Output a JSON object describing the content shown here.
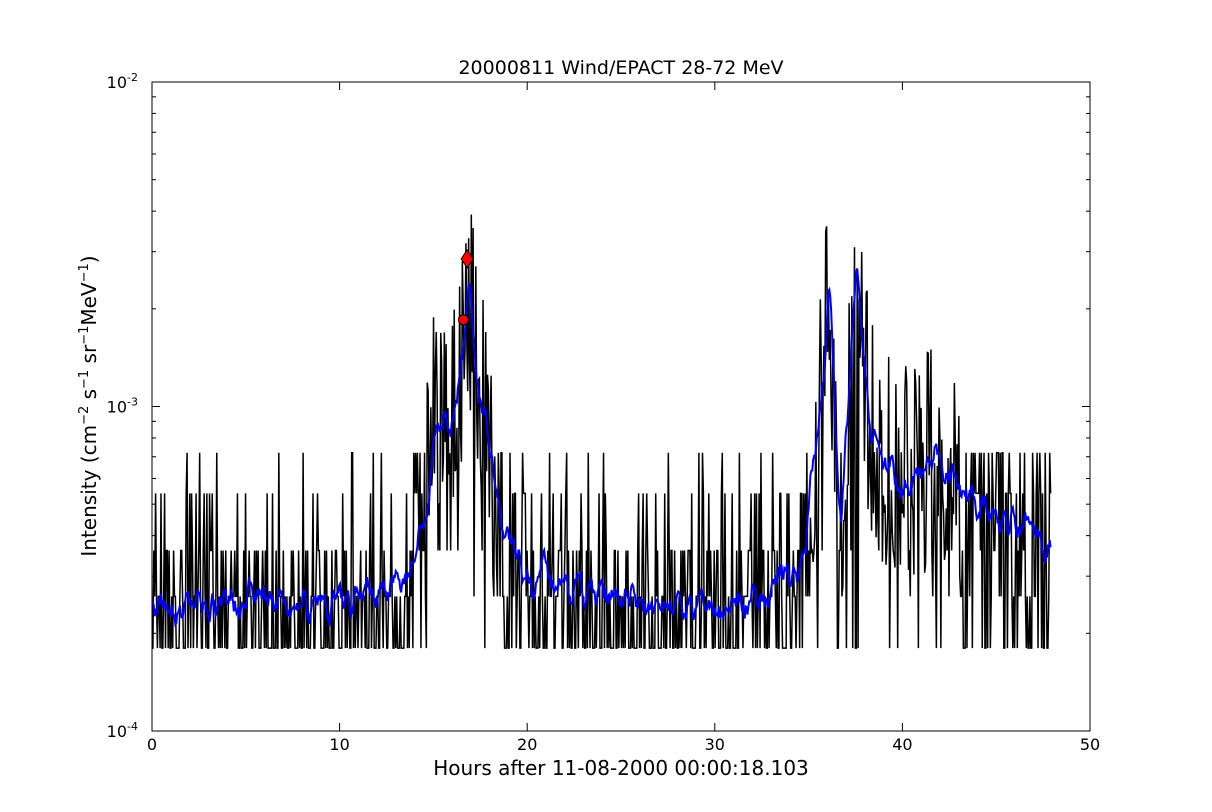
{
  "chart_data": {
    "type": "line",
    "title": "20000811 Wind/EPACT 28-72 MeV",
    "xlabel": "Hours after 11-08-2000 00:00:18.103",
    "ylabel_parts": {
      "lead": "Intensity (cm",
      "exp1": "−2",
      "mid1": " s",
      "exp2": "−1",
      "mid2": " sr",
      "exp3": "−1",
      "mid3": "MeV",
      "exp4": "−1",
      "tail": ")"
    },
    "xlim": [
      0,
      50
    ],
    "ylim": [
      0.0001,
      0.01
    ],
    "yscale": "log",
    "grid": false,
    "x_ticks": [
      {
        "value": 0,
        "label": "0"
      },
      {
        "value": 10,
        "label": "10"
      },
      {
        "value": 20,
        "label": "20"
      },
      {
        "value": 30,
        "label": "30"
      },
      {
        "value": 40,
        "label": "40"
      },
      {
        "value": 50,
        "label": "50"
      }
    ],
    "y_ticks": [
      {
        "value": 0.0001,
        "base": "10",
        "exp": "-4"
      },
      {
        "value": 0.001,
        "base": "10",
        "exp": "-3"
      },
      {
        "value": 0.01,
        "base": "10",
        "exp": "-2"
      }
    ],
    "baseline_level": 0.00018,
    "series": [
      {
        "role": "raw",
        "color": "#000000",
        "x_range": [
          0,
          47.9
        ],
        "noise_levels": [
          0.00018,
          0.00026,
          0.00036,
          0.00054,
          0.00072
        ],
        "envelope": [
          {
            "x": 0,
            "y": 0.00026
          },
          {
            "x": 5,
            "y": 0.00028
          },
          {
            "x": 10,
            "y": 0.00027
          },
          {
            "x": 13.5,
            "y": 0.00032
          },
          {
            "x": 14.6,
            "y": 0.00055
          },
          {
            "x": 15.2,
            "y": 0.0012
          },
          {
            "x": 15.9,
            "y": 0.0009
          },
          {
            "x": 16.6,
            "y": 0.0016
          },
          {
            "x": 16.9,
            "y": 0.0026
          },
          {
            "x": 17.3,
            "y": 0.0014
          },
          {
            "x": 18.5,
            "y": 0.00055
          },
          {
            "x": 20,
            "y": 0.00035
          },
          {
            "x": 25,
            "y": 0.00029
          },
          {
            "x": 30,
            "y": 0.00025
          },
          {
            "x": 34.5,
            "y": 0.00032
          },
          {
            "x": 35.6,
            "y": 0.0011
          },
          {
            "x": 36.1,
            "y": 0.0024
          },
          {
            "x": 36.7,
            "y": 0.0005
          },
          {
            "x": 37.6,
            "y": 0.0032
          },
          {
            "x": 38.3,
            "y": 0.0009
          },
          {
            "x": 40,
            "y": 0.00065
          },
          {
            "x": 42,
            "y": 0.00078
          },
          {
            "x": 44,
            "y": 0.00048
          },
          {
            "x": 46,
            "y": 0.00045
          },
          {
            "x": 47.9,
            "y": 0.0004
          }
        ]
      },
      {
        "role": "smoothed",
        "color": "#0000ff",
        "x_range": [
          0,
          47.9
        ],
        "envelope": [
          {
            "x": 0,
            "y": 0.00024
          },
          {
            "x": 5,
            "y": 0.00025
          },
          {
            "x": 10,
            "y": 0.00025
          },
          {
            "x": 13.5,
            "y": 0.0003
          },
          {
            "x": 14.6,
            "y": 0.00045
          },
          {
            "x": 15.2,
            "y": 0.001
          },
          {
            "x": 15.9,
            "y": 0.0008
          },
          {
            "x": 16.6,
            "y": 0.0014
          },
          {
            "x": 16.9,
            "y": 0.0026
          },
          {
            "x": 17.3,
            "y": 0.0013
          },
          {
            "x": 18.5,
            "y": 0.0005
          },
          {
            "x": 20,
            "y": 0.0003
          },
          {
            "x": 25,
            "y": 0.00026
          },
          {
            "x": 30,
            "y": 0.00023
          },
          {
            "x": 34.5,
            "y": 0.0003
          },
          {
            "x": 35.6,
            "y": 0.0009
          },
          {
            "x": 36.1,
            "y": 0.0022
          },
          {
            "x": 36.7,
            "y": 0.00045
          },
          {
            "x": 37.6,
            "y": 0.0029
          },
          {
            "x": 38.3,
            "y": 0.0008
          },
          {
            "x": 40,
            "y": 0.00055
          },
          {
            "x": 42,
            "y": 0.00068
          },
          {
            "x": 44,
            "y": 0.00048
          },
          {
            "x": 46,
            "y": 0.00044
          },
          {
            "x": 47.9,
            "y": 0.00036
          }
        ]
      }
    ],
    "markers": [
      {
        "x": 16.6,
        "y": 0.00185,
        "shape": "circle",
        "color": "#ff0000"
      },
      {
        "x": 16.8,
        "y": 0.00285,
        "shape": "diamond",
        "color": "#ff0000"
      }
    ]
  }
}
